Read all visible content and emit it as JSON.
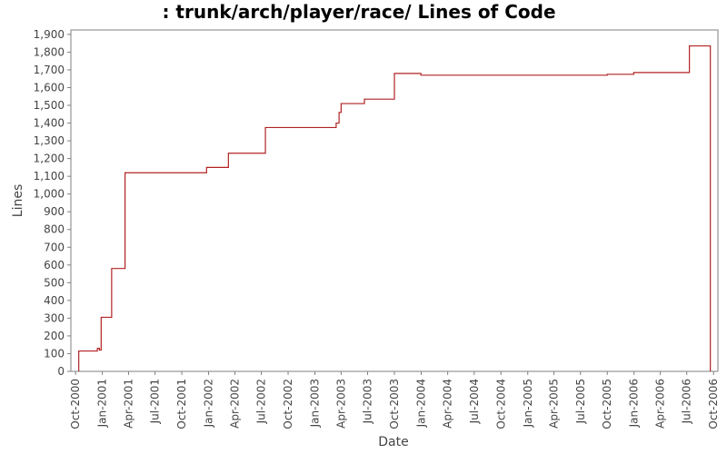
{
  "chart_data": {
    "type": "line",
    "title": ": trunk/arch/player/race/ Lines of Code",
    "xlabel": "Date",
    "ylabel": "Lines",
    "ylim": [
      0,
      1925
    ],
    "xlim": [
      "2000-09-15",
      "2006-10-16"
    ],
    "grid": false,
    "line_style": "step",
    "y_ticks": [
      0,
      100,
      200,
      300,
      400,
      500,
      600,
      700,
      800,
      900,
      1000,
      1100,
      1200,
      1300,
      1400,
      1500,
      1600,
      1700,
      1800,
      1900
    ],
    "y_tick_labels": [
      "0",
      "100",
      "200",
      "300",
      "400",
      "500",
      "600",
      "700",
      "800",
      "900",
      "1,000",
      "1,100",
      "1,200",
      "1,300",
      "1,400",
      "1,500",
      "1,600",
      "1,700",
      "1,800",
      "1,900"
    ],
    "x_ticks": [
      "2000-10-01",
      "2001-01-01",
      "2001-04-01",
      "2001-07-01",
      "2001-10-01",
      "2002-01-01",
      "2002-04-01",
      "2002-07-01",
      "2002-10-01",
      "2003-01-01",
      "2003-04-01",
      "2003-07-01",
      "2003-10-01",
      "2004-01-01",
      "2004-04-01",
      "2004-07-01",
      "2004-10-01",
      "2005-01-01",
      "2005-04-01",
      "2005-07-01",
      "2005-10-01",
      "2006-01-01",
      "2006-04-01",
      "2006-07-01",
      "2006-10-01"
    ],
    "x_tick_labels": [
      "Oct-2000",
      "Jan-2001",
      "Apr-2001",
      "Jul-2001",
      "Oct-2001",
      "Jan-2002",
      "Apr-2002",
      "Jul-2002",
      "Oct-2002",
      "Jan-2003",
      "Apr-2003",
      "Jul-2003",
      "Oct-2003",
      "Jan-2004",
      "Apr-2004",
      "Jul-2004",
      "Oct-2004",
      "Jan-2005",
      "Apr-2005",
      "Jul-2005",
      "Oct-2005",
      "Jan-2006",
      "Apr-2006",
      "Jul-2006",
      "Oct-2006"
    ],
    "series": [
      {
        "color": "#b22222",
        "points": [
          {
            "x": "2000-10-12",
            "y": 0
          },
          {
            "x": "2000-10-12",
            "y": 115
          },
          {
            "x": "2000-12-15",
            "y": 115
          },
          {
            "x": "2000-12-15",
            "y": 130
          },
          {
            "x": "2000-12-22",
            "y": 130
          },
          {
            "x": "2000-12-22",
            "y": 120
          },
          {
            "x": "2000-12-28",
            "y": 120
          },
          {
            "x": "2000-12-28",
            "y": 305
          },
          {
            "x": "2001-02-02",
            "y": 305
          },
          {
            "x": "2001-02-02",
            "y": 580
          },
          {
            "x": "2001-03-20",
            "y": 580
          },
          {
            "x": "2001-03-20",
            "y": 1120
          },
          {
            "x": "2001-12-25",
            "y": 1120
          },
          {
            "x": "2001-12-25",
            "y": 1150
          },
          {
            "x": "2002-03-10",
            "y": 1150
          },
          {
            "x": "2002-03-10",
            "y": 1230
          },
          {
            "x": "2002-07-15",
            "y": 1230
          },
          {
            "x": "2002-07-15",
            "y": 1375
          },
          {
            "x": "2003-03-15",
            "y": 1375
          },
          {
            "x": "2003-03-15",
            "y": 1400
          },
          {
            "x": "2003-03-25",
            "y": 1400
          },
          {
            "x": "2003-03-25",
            "y": 1460
          },
          {
            "x": "2003-04-01",
            "y": 1460
          },
          {
            "x": "2003-04-01",
            "y": 1510
          },
          {
            "x": "2003-06-20",
            "y": 1510
          },
          {
            "x": "2003-06-20",
            "y": 1535
          },
          {
            "x": "2003-10-01",
            "y": 1535
          },
          {
            "x": "2003-10-01",
            "y": 1680
          },
          {
            "x": "2003-12-31",
            "y": 1680
          },
          {
            "x": "2003-12-31",
            "y": 1670
          },
          {
            "x": "2005-10-01",
            "y": 1670
          },
          {
            "x": "2005-10-01",
            "y": 1675
          },
          {
            "x": "2005-12-31",
            "y": 1675
          },
          {
            "x": "2005-12-31",
            "y": 1685
          },
          {
            "x": "2006-07-10",
            "y": 1685
          },
          {
            "x": "2006-07-10",
            "y": 1835
          },
          {
            "x": "2006-09-20",
            "y": 1835
          },
          {
            "x": "2006-09-20",
            "y": 0
          }
        ]
      }
    ]
  }
}
